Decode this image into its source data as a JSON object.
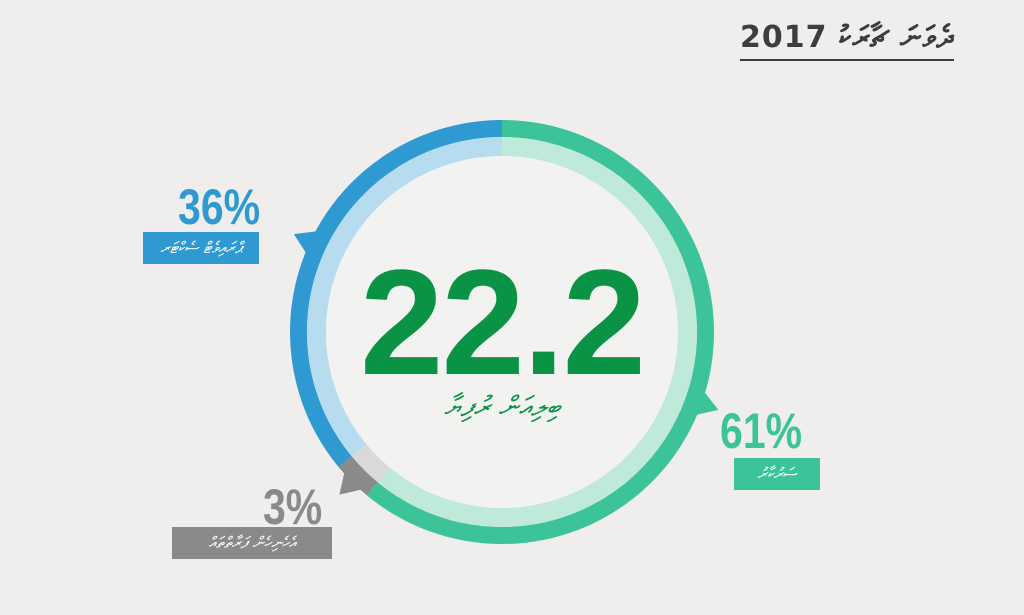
{
  "header": {
    "title": "ދެވަނަ ޗާރަކު 2017"
  },
  "center": {
    "value": "22.2",
    "label": "ބިލިއަން ރުފިޔާ"
  },
  "chart_data": {
    "type": "pie",
    "categories": [
      "ޕްރައިވެޓް ސެކްޓަރ",
      "ސަރުކާރު",
      "އެހެނިހެން ފަރާތްތައް"
    ],
    "values": [
      36,
      61,
      3
    ],
    "value_labels": [
      "36%",
      "61%",
      "3%"
    ],
    "total": "22.2",
    "colors": {
      "seg1_outer": "#2f9ad1",
      "seg1_inner": "#b7dcf0",
      "seg2_outer": "#3dc39a",
      "seg2_inner": "#bfe9d9",
      "seg3_outer": "#8a8a8a",
      "seg3_inner": "#d9d9d9",
      "center_fill": "#f2f2f1",
      "center_text": "#0a9245"
    }
  }
}
